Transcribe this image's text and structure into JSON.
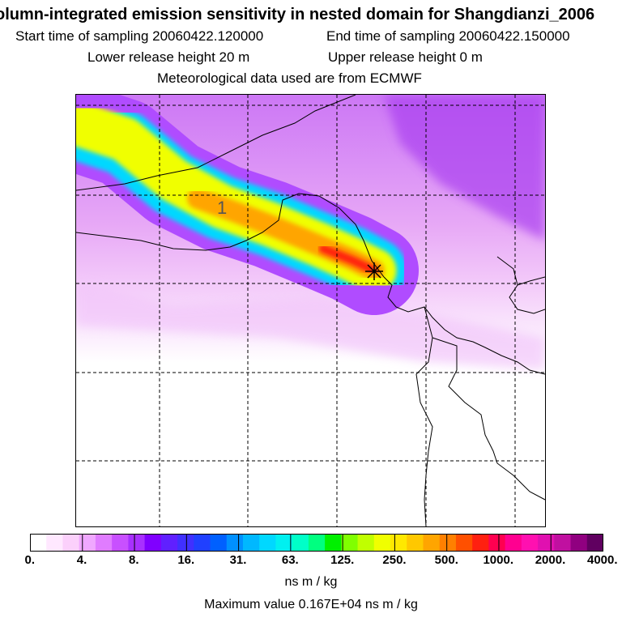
{
  "header": {
    "title": "olumn-integrated emission sensitivity in nested domain for Shangdianzi_2006",
    "start_label": "Start time of sampling 20060422.120000",
    "end_label": "End time of sampling 20060422.150000",
    "lower_label": "Lower release height   20 m",
    "upper_label": "Upper release height    0 m",
    "met_label": "Meteorological data used are from ECMWF"
  },
  "map": {
    "plume_label": "1",
    "receptor_icon": "star-icon",
    "plume_colors": [
      "#b04cff",
      "#00d8ff",
      "#f0ff00",
      "#ffa500",
      "#ff2010"
    ]
  },
  "colorbar": {
    "ticks": [
      "0.",
      "4.",
      "8.",
      "16.",
      "31.",
      "63.",
      "125.",
      "250.",
      "500.",
      "1000.",
      "2000.",
      "4000."
    ],
    "colors": [
      "#ffffff",
      "#ffe8ff",
      "#fbd0fb",
      "#f0a8ff",
      "#e07cff",
      "#c850ff",
      "#a830ff",
      "#8000ff",
      "#6020ff",
      "#4030ff",
      "#2040ff",
      "#0060ff",
      "#0090ff",
      "#00b8ff",
      "#00d8ff",
      "#00f0f0",
      "#00ffc8",
      "#00ff80",
      "#00f000",
      "#80ff00",
      "#c0ff00",
      "#f0ff00",
      "#ffe800",
      "#ffc800",
      "#ffa500",
      "#ff8000",
      "#ff5000",
      "#ff2010",
      "#ff0050",
      "#ff0090",
      "#ff10b0",
      "#e010b0",
      "#c010a0",
      "#900080",
      "#600060"
    ],
    "unit": "ns m / kg",
    "max_text": "Maximum value  0.167E+04 ns m / kg"
  }
}
